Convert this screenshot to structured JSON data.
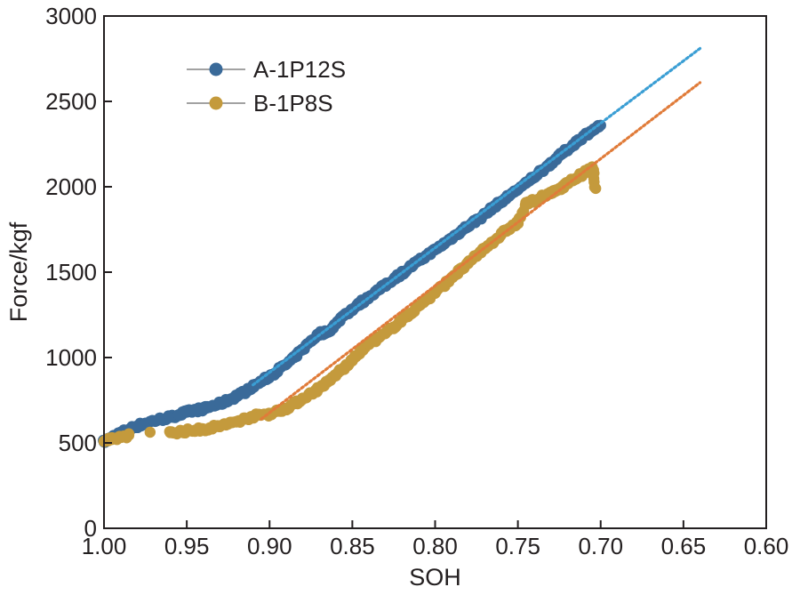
{
  "chart_data": {
    "type": "scatter",
    "xlabel": "SOH",
    "ylabel": "Force/kgf",
    "xlim": [
      1.0,
      0.6
    ],
    "ylim": [
      0,
      3000
    ],
    "x_reversed": true,
    "x_ticks": [
      "1.00",
      "0.95",
      "0.90",
      "0.85",
      "0.80",
      "0.75",
      "0.70",
      "0.65",
      "0.60"
    ],
    "y_ticks": [
      "0",
      "500",
      "1000",
      "1500",
      "2000",
      "2500",
      "3000"
    ],
    "grid": false,
    "legend_position": "top-left",
    "series": [
      {
        "name": "A-1P12S",
        "color": "#3a6a99",
        "marker": "circle",
        "x": [
          1.0,
          0.995,
          0.99,
          0.985,
          0.98,
          0.975,
          0.97,
          0.965,
          0.96,
          0.955,
          0.95,
          0.945,
          0.94,
          0.935,
          0.93,
          0.925,
          0.92,
          0.915,
          0.91,
          0.905,
          0.9,
          0.895,
          0.89,
          0.885,
          0.88,
          0.875,
          0.87,
          0.865,
          0.86,
          0.855,
          0.85,
          0.845,
          0.84,
          0.835,
          0.83,
          0.825,
          0.82,
          0.815,
          0.81,
          0.805,
          0.8,
          0.795,
          0.79,
          0.785,
          0.78,
          0.775,
          0.77,
          0.765,
          0.76,
          0.755,
          0.75,
          0.745,
          0.74,
          0.735,
          0.73,
          0.725,
          0.72,
          0.715,
          0.71,
          0.705,
          0.7
        ],
        "y": [
          505,
          535,
          560,
          580,
          600,
          615,
          630,
          640,
          650,
          665,
          680,
          690,
          700,
          715,
          730,
          750,
          775,
          800,
          830,
          860,
          890,
          925,
          960,
          1000,
          1050,
          1100,
          1140,
          1150,
          1195,
          1250,
          1285,
          1320,
          1355,
          1390,
          1425,
          1460,
          1495,
          1530,
          1565,
          1600,
          1630,
          1665,
          1700,
          1735,
          1770,
          1805,
          1840,
          1880,
          1915,
          1950,
          1985,
          2020,
          2060,
          2100,
          2140,
          2180,
          2220,
          2260,
          2300,
          2330,
          2360
        ]
      },
      {
        "name": "B-1P8S",
        "color": "#c49a3c",
        "marker": "circle",
        "x": [
          1.0,
          0.995,
          0.99,
          0.985,
          0.96,
          0.955,
          0.95,
          0.945,
          0.94,
          0.935,
          0.93,
          0.925,
          0.92,
          0.915,
          0.91,
          0.905,
          0.9,
          0.895,
          0.89,
          0.885,
          0.88,
          0.875,
          0.87,
          0.865,
          0.86,
          0.855,
          0.85,
          0.845,
          0.84,
          0.835,
          0.83,
          0.825,
          0.82,
          0.815,
          0.81,
          0.805,
          0.8,
          0.795,
          0.79,
          0.785,
          0.78,
          0.775,
          0.77,
          0.765,
          0.76,
          0.755,
          0.75,
          0.745,
          0.74,
          0.735,
          0.73,
          0.725,
          0.72,
          0.715,
          0.71,
          0.705,
          0.703
        ],
        "y": [
          510,
          520,
          535,
          545,
          560,
          565,
          570,
          575,
          580,
          590,
          600,
          610,
          625,
          640,
          655,
          665,
          670,
          685,
          705,
          730,
          760,
          790,
          820,
          855,
          900,
          940,
          980,
          1040,
          1080,
          1110,
          1140,
          1180,
          1220,
          1260,
          1300,
          1340,
          1380,
          1420,
          1470,
          1510,
          1550,
          1600,
          1640,
          1680,
          1720,
          1760,
          1790,
          1900,
          1920,
          1940,
          1960,
          1990,
          2020,
          2050,
          2080,
          2110,
          1990
        ]
      }
    ],
    "trendlines": [
      {
        "series": "A-1P12S",
        "color": "#3a9ed4",
        "style": "dotted",
        "x": [
          0.91,
          0.64
        ],
        "y": [
          840,
          2810
        ]
      },
      {
        "series": "B-1P8S",
        "color": "#e07b39",
        "style": "dotted",
        "x": [
          0.905,
          0.64
        ],
        "y": [
          640,
          2610
        ]
      }
    ]
  }
}
